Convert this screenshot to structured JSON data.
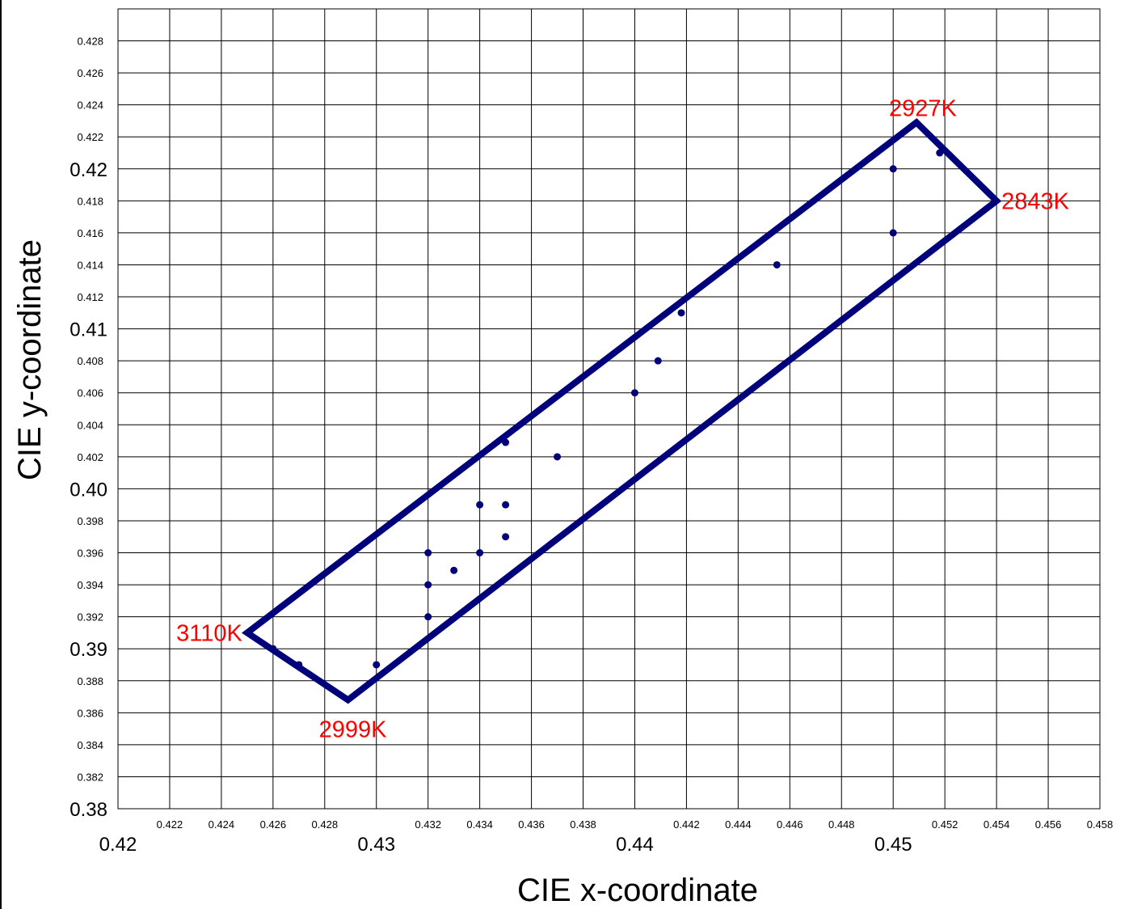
{
  "chart_data": {
    "type": "scatter",
    "title": "",
    "xlabel": "CIE x-coordinate",
    "ylabel": "CIE y-coordinate",
    "xlim": [
      0.42,
      0.458
    ],
    "ylim": [
      0.38,
      0.43
    ],
    "grid": true,
    "colors": {
      "series": "#00007a",
      "annotation": "#ff0000",
      "grid": "#000000"
    },
    "x_ticks_major": [
      {
        "value": 0.42,
        "label": "0.42"
      },
      {
        "value": 0.43,
        "label": "0.43"
      },
      {
        "value": 0.44,
        "label": "0.44"
      },
      {
        "value": 0.45,
        "label": "0.45"
      }
    ],
    "x_ticks_minor": [
      {
        "value": 0.422,
        "label": "0.422"
      },
      {
        "value": 0.424,
        "label": "0.424"
      },
      {
        "value": 0.426,
        "label": "0.426"
      },
      {
        "value": 0.428,
        "label": "0.428"
      },
      {
        "value": 0.432,
        "label": "0.432"
      },
      {
        "value": 0.434,
        "label": "0.434"
      },
      {
        "value": 0.436,
        "label": "0.436"
      },
      {
        "value": 0.438,
        "label": "0.438"
      },
      {
        "value": 0.442,
        "label": "0.442"
      },
      {
        "value": 0.444,
        "label": "0.444"
      },
      {
        "value": 0.446,
        "label": "0.446"
      },
      {
        "value": 0.448,
        "label": "0.448"
      },
      {
        "value": 0.452,
        "label": "0.452"
      },
      {
        "value": 0.454,
        "label": "0.454"
      },
      {
        "value": 0.456,
        "label": "0.456"
      },
      {
        "value": 0.458,
        "label": "0.458"
      }
    ],
    "y_ticks_major": [
      {
        "value": 0.38,
        "label": "0.38"
      },
      {
        "value": 0.39,
        "label": "0.39"
      },
      {
        "value": 0.4,
        "label": "0.40"
      },
      {
        "value": 0.41,
        "label": "0.41"
      },
      {
        "value": 0.42,
        "label": "0.42"
      }
    ],
    "y_ticks_minor": [
      {
        "value": 0.382,
        "label": "0.382"
      },
      {
        "value": 0.384,
        "label": "0.384"
      },
      {
        "value": 0.386,
        "label": "0.386"
      },
      {
        "value": 0.388,
        "label": "0.388"
      },
      {
        "value": 0.392,
        "label": "0.392"
      },
      {
        "value": 0.394,
        "label": "0.394"
      },
      {
        "value": 0.396,
        "label": "0.396"
      },
      {
        "value": 0.398,
        "label": "0.398"
      },
      {
        "value": 0.402,
        "label": "0.402"
      },
      {
        "value": 0.404,
        "label": "0.404"
      },
      {
        "value": 0.406,
        "label": "0.406"
      },
      {
        "value": 0.408,
        "label": "0.408"
      },
      {
        "value": 0.412,
        "label": "0.412"
      },
      {
        "value": 0.414,
        "label": "0.414"
      },
      {
        "value": 0.416,
        "label": "0.416"
      },
      {
        "value": 0.418,
        "label": "0.418"
      },
      {
        "value": 0.422,
        "label": "0.422"
      },
      {
        "value": 0.424,
        "label": "0.424"
      },
      {
        "value": 0.426,
        "label": "0.426"
      },
      {
        "value": 0.428,
        "label": "0.428"
      }
    ],
    "boundary": [
      {
        "x": 0.425,
        "y": 0.391,
        "label": "3110K"
      },
      {
        "x": 0.4509,
        "y": 0.4229,
        "label": "2927K"
      },
      {
        "x": 0.454,
        "y": 0.418,
        "label": "2843K"
      },
      {
        "x": 0.4289,
        "y": 0.3868,
        "label": "2999K"
      }
    ],
    "points": [
      {
        "x": 0.426,
        "y": 0.39
      },
      {
        "x": 0.427,
        "y": 0.389
      },
      {
        "x": 0.43,
        "y": 0.389
      },
      {
        "x": 0.432,
        "y": 0.392
      },
      {
        "x": 0.432,
        "y": 0.394
      },
      {
        "x": 0.432,
        "y": 0.396
      },
      {
        "x": 0.433,
        "y": 0.3949
      },
      {
        "x": 0.434,
        "y": 0.396
      },
      {
        "x": 0.434,
        "y": 0.399
      },
      {
        "x": 0.435,
        "y": 0.397
      },
      {
        "x": 0.435,
        "y": 0.399
      },
      {
        "x": 0.435,
        "y": 0.4029
      },
      {
        "x": 0.437,
        "y": 0.402
      },
      {
        "x": 0.44,
        "y": 0.406
      },
      {
        "x": 0.4409,
        "y": 0.408
      },
      {
        "x": 0.4418,
        "y": 0.411
      },
      {
        "x": 0.4455,
        "y": 0.414
      },
      {
        "x": 0.45,
        "y": 0.416
      },
      {
        "x": 0.45,
        "y": 0.42
      },
      {
        "x": 0.4518,
        "y": 0.421
      }
    ]
  }
}
